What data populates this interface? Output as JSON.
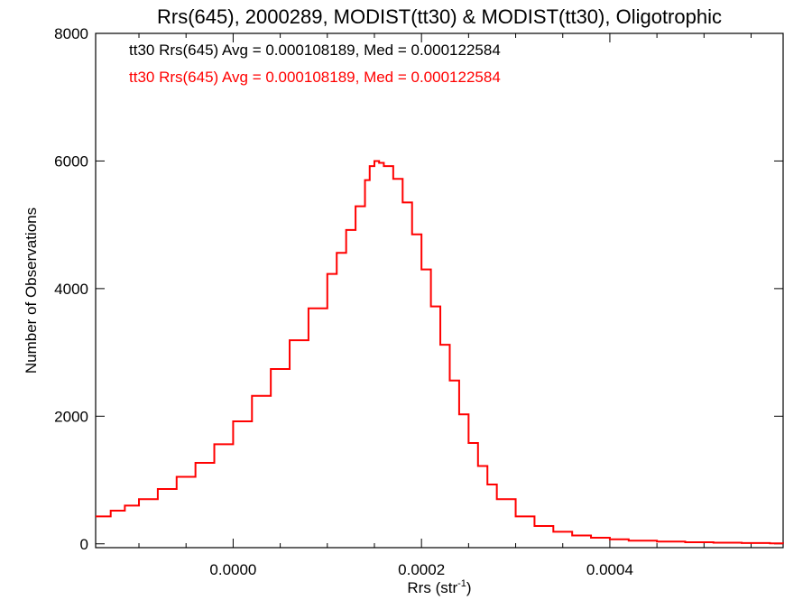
{
  "chart_data": {
    "type": "line",
    "title": "Rrs(645), 2000289, MODIST(tt30) & MODIST(tt30), Oligotrophic",
    "xlabel": "Rrs (str",
    "xlabel_superscript": "-1",
    "xlabel_suffix": ")",
    "ylabel": "Number of Observations",
    "xlim": [
      -0.000146,
      0.000584
    ],
    "ylim": [
      -60,
      8000
    ],
    "x_ticks": [
      0.0,
      0.0002,
      0.0004
    ],
    "x_tick_labels": [
      "0.0000",
      "0.0002",
      "0.0004"
    ],
    "y_ticks": [
      0,
      2000,
      4000,
      6000,
      8000
    ],
    "y_tick_labels": [
      "0",
      "2000",
      "4000",
      "6000",
      "8000"
    ],
    "grid": false,
    "legend_position": "top-left",
    "annotations": [
      {
        "text": "tt30 Rrs(645) Avg = 0.000108189, Med = 0.000122584",
        "color": "#000000"
      },
      {
        "text": "tt30 Rrs(645) Avg = 0.000108189, Med = 0.000122584",
        "color": "#ff0000"
      }
    ],
    "series": [
      {
        "color": "#ff0000",
        "style": "step",
        "x": [
          -0.000146,
          -0.00013,
          -0.000115,
          -0.0001,
          -8e-05,
          -6e-05,
          -4e-05,
          -2e-05,
          0.0,
          2e-05,
          4e-05,
          6e-05,
          8e-05,
          0.0001,
          0.00011,
          0.00012,
          0.00013,
          0.00014,
          0.000145,
          0.00015,
          0.000155,
          0.00016,
          0.00017,
          0.00018,
          0.00019,
          0.0002,
          0.00021,
          0.00022,
          0.00023,
          0.00024,
          0.00025,
          0.00026,
          0.00027,
          0.00028,
          0.0003,
          0.00032,
          0.00034,
          0.00036,
          0.00038,
          0.0004,
          0.00042,
          0.00045,
          0.00048,
          0.00051,
          0.00054,
          0.00057,
          0.000584
        ],
        "y": [
          430,
          520,
          600,
          700,
          860,
          1050,
          1270,
          1560,
          1920,
          2320,
          2740,
          3190,
          3690,
          4230,
          4560,
          4920,
          5290,
          5700,
          5920,
          6000,
          5970,
          5920,
          5720,
          5350,
          4850,
          4300,
          3720,
          3120,
          2560,
          2030,
          1580,
          1220,
          930,
          700,
          430,
          280,
          190,
          130,
          95,
          70,
          50,
          35,
          25,
          18,
          12,
          8,
          5
        ]
      }
    ]
  }
}
